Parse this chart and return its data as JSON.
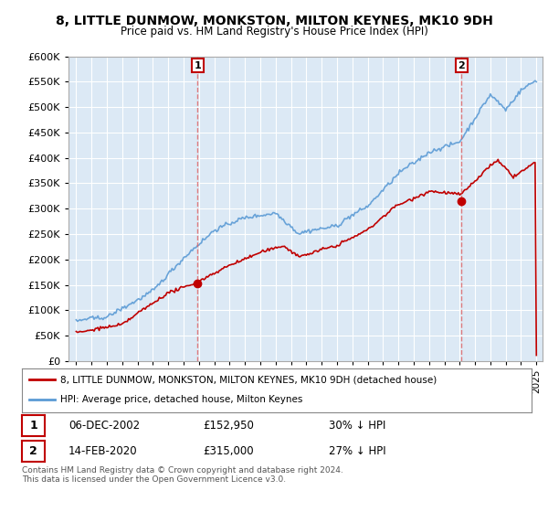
{
  "title": "8, LITTLE DUNMOW, MONKSTON, MILTON KEYNES, MK10 9DH",
  "subtitle": "Price paid vs. HM Land Registry's House Price Index (HPI)",
  "legend_line1": "8, LITTLE DUNMOW, MONKSTON, MILTON KEYNES, MK10 9DH (detached house)",
  "legend_line2": "HPI: Average price, detached house, Milton Keynes",
  "sale1_date": "06-DEC-2002",
  "sale1_price": "£152,950",
  "sale1_info": "30% ↓ HPI",
  "sale1_year": 2002.92,
  "sale1_value": 152950,
  "sale2_date": "14-FEB-2020",
  "sale2_price": "£315,000",
  "sale2_info": "27% ↓ HPI",
  "sale2_year": 2020.12,
  "sale2_value": 315000,
  "footnote": "Contains HM Land Registry data © Crown copyright and database right 2024.\nThis data is licensed under the Open Government Licence v3.0.",
  "hpi_color": "#5b9bd5",
  "price_color": "#c00000",
  "sale_vline_color": "#e06060",
  "ylim_min": 0,
  "ylim_max": 600000,
  "ytick_step": 50000,
  "background_color": "#ffffff",
  "plot_bg_color": "#dce9f5",
  "grid_color": "#ffffff",
  "xmin": 1995,
  "xmax": 2025
}
